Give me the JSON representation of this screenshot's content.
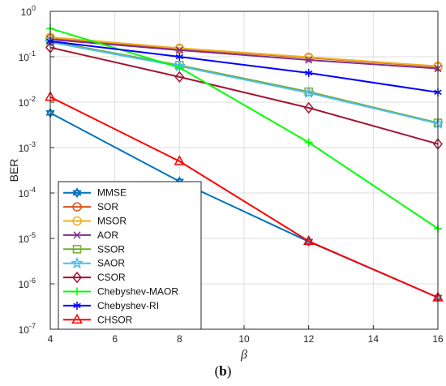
{
  "caption": {
    "open": "(",
    "letter": "b",
    "close": ")"
  },
  "chart_data": {
    "type": "line",
    "xlabel": "β",
    "ylabel": "BER",
    "xscale": "linear",
    "yscale": "log",
    "xlim": [
      4,
      16
    ],
    "ylim": [
      1e-07,
      1
    ],
    "xticks": [
      "4",
      "6",
      "8",
      "10",
      "12",
      "14",
      "16"
    ],
    "yticks": [
      "10^0",
      "10^-1",
      "10^-2",
      "10^-3",
      "10^-4",
      "10^-5",
      "10^-6",
      "10^-7"
    ],
    "grid": true,
    "legend_position": "bottom-left",
    "x": [
      4,
      8,
      12,
      16
    ],
    "series": [
      {
        "name": "MMSE",
        "color": "#0072BD",
        "marker": "hexagram",
        "x": [
          4,
          8,
          12,
          16
        ],
        "values": [
          0.0058,
          0.00018,
          8.5e-06,
          5e-07
        ]
      },
      {
        "name": "SOR",
        "color": "#D95319",
        "marker": "circle",
        "values": [
          0.25,
          0.15,
          0.095,
          0.06
        ]
      },
      {
        "name": "MSOR",
        "color": "#EDB120",
        "marker": "circle",
        "values": [
          0.27,
          0.155,
          0.098,
          0.062
        ]
      },
      {
        "name": "AOR",
        "color": "#7E2F8E",
        "marker": "x",
        "values": [
          0.24,
          0.14,
          0.085,
          0.055
        ]
      },
      {
        "name": "SSOR",
        "color": "#77AC30",
        "marker": "square",
        "values": [
          0.22,
          0.065,
          0.017,
          0.0035
        ]
      },
      {
        "name": "SAOR",
        "color": "#4DBEEE",
        "marker": "star",
        "values": [
          0.21,
          0.062,
          0.016,
          0.0034
        ]
      },
      {
        "name": "CSOR",
        "color": "#A2142F",
        "marker": "diamond",
        "values": [
          0.16,
          0.036,
          0.0075,
          0.0012
        ]
      },
      {
        "name": "Chebyshev-MAOR",
        "color": "#00FF00",
        "marker": "plus",
        "values": [
          0.42,
          0.058,
          0.0013,
          1.65e-05
        ]
      },
      {
        "name": "Chebyshev-RI",
        "color": "#0000FF",
        "marker": "asterisk",
        "values": [
          0.22,
          0.1,
          0.044,
          0.0165
        ]
      },
      {
        "name": "CHSOR",
        "color": "#FF0000",
        "marker": "triangle",
        "values": [
          0.013,
          0.0005,
          8.7e-06,
          5e-07
        ]
      }
    ]
  }
}
